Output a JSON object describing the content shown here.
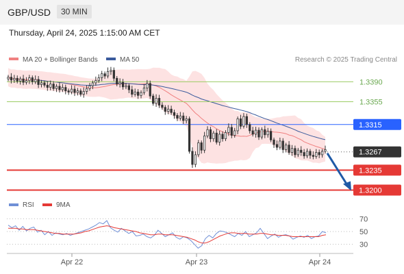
{
  "header": {
    "symbol": "GBP/USD",
    "timeframe": "30 MIN"
  },
  "datetime": "Thursday, April 24, 2025 1:15:00 AM CET",
  "legend": {
    "ma20": "MA 20 + Bollinger Bands",
    "ma50": "MA 50",
    "credit": "Research © 2025 Trading Central"
  },
  "rsi_legend": {
    "rsi": "RSI",
    "ma9": "9MA"
  },
  "colors": {
    "ma20": "#f08080",
    "band": "#fde2e2",
    "ma50": "#3a5a9c",
    "green": "#9ccc65",
    "blue": "#2962ff",
    "red": "#e53935",
    "dark": "#333333",
    "candle": "#333333",
    "rsi": "#6f8fd6",
    "rsi_ma": "#e53935",
    "arrow": "#1f5aa6"
  },
  "chart_data": [
    {
      "type": "candlestick",
      "title": "GBP/USD",
      "x_ticks": [
        "Apr 22",
        "Apr 23",
        "Apr 24"
      ],
      "ylim": [
        1.3185,
        1.3418
      ],
      "levels": [
        {
          "value": 1.339,
          "label": "1.3390",
          "style": "green"
        },
        {
          "value": 1.3355,
          "label": "1.3355",
          "style": "green"
        },
        {
          "value": 1.3315,
          "label": "1.3315",
          "style": "blue"
        },
        {
          "value": 1.3267,
          "label": "1.3267",
          "style": "dark"
        },
        {
          "value": 1.3235,
          "label": "1.3235",
          "style": "red"
        },
        {
          "value": 1.32,
          "label": "1.3200",
          "style": "red"
        }
      ],
      "forecast_arrow": {
        "from": 1.3267,
        "to": 1.32
      },
      "close": [
        1.3398,
        1.3393,
        1.3396,
        1.3391,
        1.3395,
        1.3389,
        1.3392,
        1.3397,
        1.339,
        1.3394,
        1.3385,
        1.3388,
        1.3384,
        1.338,
        1.3386,
        1.3378,
        1.3382,
        1.3376,
        1.338,
        1.3374,
        1.3372,
        1.3377,
        1.3371,
        1.3374,
        1.3368,
        1.3373,
        1.3378,
        1.3383,
        1.3388,
        1.3392,
        1.3397,
        1.3404,
        1.34,
        1.3408,
        1.341,
        1.3396,
        1.3386,
        1.3389,
        1.3381,
        1.3383,
        1.3376,
        1.3368,
        1.3372,
        1.3366,
        1.3371,
        1.3379,
        1.3387,
        1.3365,
        1.3352,
        1.3361,
        1.3349,
        1.3345,
        1.3338,
        1.3342,
        1.3336,
        1.3331,
        1.3326,
        1.333,
        1.3322,
        1.3325,
        1.3268,
        1.3245,
        1.3262,
        1.3283,
        1.327,
        1.3295,
        1.3306,
        1.329,
        1.33,
        1.3284,
        1.3298,
        1.329,
        1.3301,
        1.331,
        1.3296,
        1.3304,
        1.3325,
        1.3312,
        1.3329,
        1.3315,
        1.3304,
        1.3298,
        1.3305,
        1.3293,
        1.3306,
        1.3297,
        1.3303,
        1.3288,
        1.328,
        1.3275,
        1.3286,
        1.3271,
        1.3279,
        1.3266,
        1.3273,
        1.3262,
        1.327,
        1.3266,
        1.326,
        1.3268,
        1.3261,
        1.3259,
        1.3266,
        1.3262,
        1.3268,
        1.3271
      ]
    },
    {
      "type": "line",
      "title": "RSI",
      "y_ticks": [
        70,
        50,
        30
      ],
      "series": [
        {
          "name": "RSI",
          "values": [
            60,
            56,
            59,
            52,
            58,
            51,
            55,
            57,
            49,
            52,
            45,
            50,
            44,
            48,
            46,
            45,
            47,
            44,
            46,
            48,
            50,
            52,
            54,
            57,
            60,
            64,
            62,
            67,
            56,
            52,
            49,
            55,
            51,
            47,
            50,
            43,
            44,
            46,
            42,
            40,
            44,
            52,
            47,
            42,
            45,
            48,
            41,
            38,
            42,
            40,
            36,
            30,
            24,
            28,
            39,
            44,
            40,
            47,
            51,
            50,
            48,
            45,
            42,
            47,
            44,
            50,
            42,
            45,
            48,
            55,
            47,
            39,
            43,
            46,
            41,
            44,
            45,
            43,
            38,
            41,
            43,
            41,
            44,
            39,
            42,
            43,
            50,
            48
          ]
        },
        {
          "name": "9MA",
          "values": [
            55,
            55,
            55,
            54,
            54,
            53,
            53,
            53,
            52,
            51,
            50,
            49,
            48,
            47,
            47,
            46,
            46,
            46,
            46,
            47,
            48,
            50,
            51,
            53,
            55,
            57,
            58,
            59,
            58,
            56,
            55,
            54,
            53,
            52,
            51,
            50,
            48,
            47,
            46,
            45,
            45,
            46,
            46,
            45,
            45,
            45,
            44,
            43,
            42,
            41,
            39,
            37,
            34,
            32,
            32,
            34,
            37,
            40,
            43,
            45,
            47,
            48,
            48,
            47,
            47,
            47,
            46,
            46,
            46,
            47,
            47,
            46,
            45,
            45,
            44,
            44,
            44,
            43,
            42,
            42,
            42,
            42,
            42,
            42,
            42,
            42,
            44,
            45
          ]
        }
      ]
    }
  ]
}
